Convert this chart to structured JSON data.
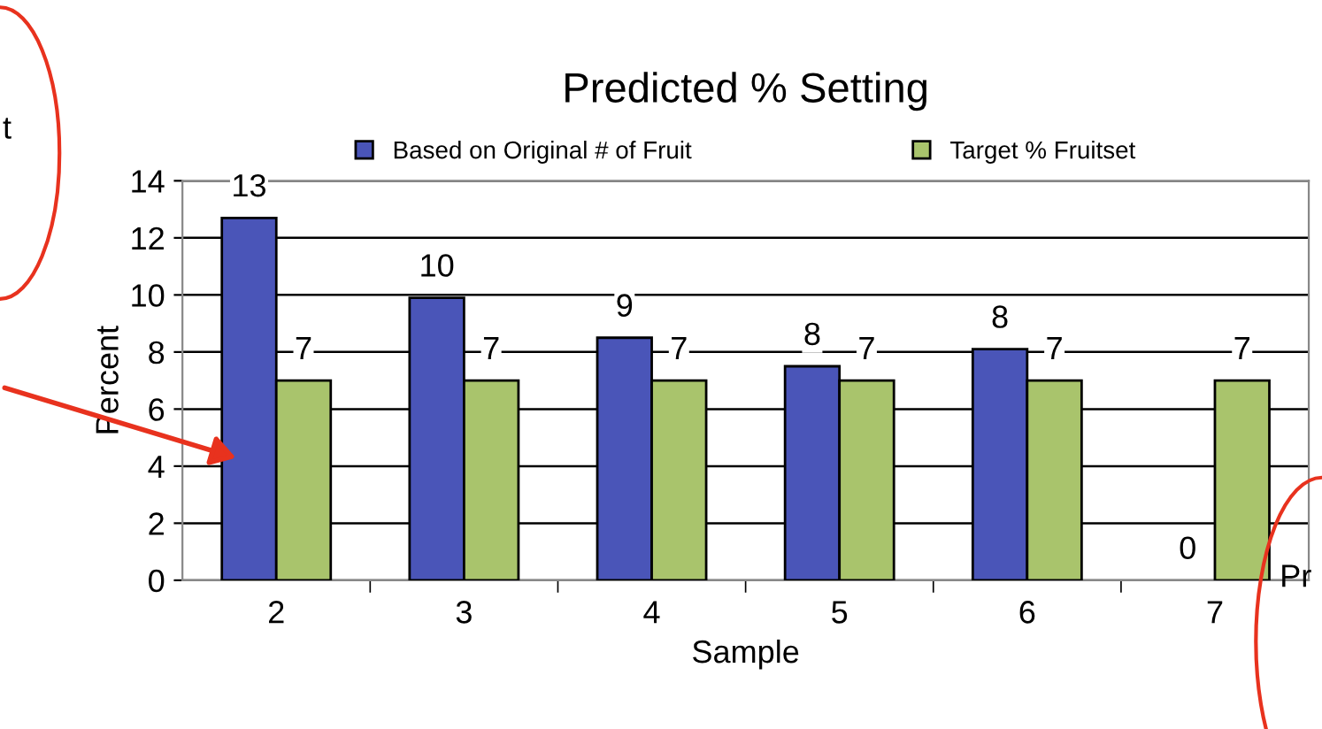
{
  "chart_data": {
    "type": "bar",
    "title": "Predicted % Setting",
    "xlabel": "Sample",
    "ylabel": "Percent",
    "categories": [
      "2",
      "3",
      "4",
      "5",
      "6",
      "7"
    ],
    "series": [
      {
        "name": "Based on Original # of Fruit",
        "color": "#4a55b8",
        "values": [
          12.7,
          9.9,
          8.5,
          7.5,
          8.1,
          0
        ],
        "value_labels": [
          "13",
          "10",
          "9",
          "8",
          "8",
          "0"
        ]
      },
      {
        "name": "Target % Fruitset",
        "color": "#a9c46c",
        "values": [
          7,
          7,
          7,
          7,
          7,
          7
        ],
        "value_labels": [
          "7",
          "7",
          "7",
          "7",
          "7",
          "7"
        ]
      }
    ],
    "ylim": [
      0,
      14
    ],
    "yticks": [
      0,
      2,
      4,
      6,
      8,
      10,
      12,
      14
    ],
    "grid": "y",
    "legend": "top",
    "annotations": [
      "t",
      "Pr"
    ]
  }
}
